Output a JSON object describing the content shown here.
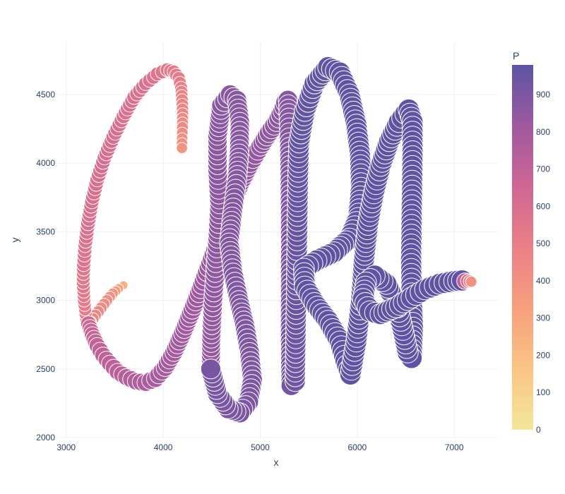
{
  "chart_data": {
    "type": "scatter",
    "title": "",
    "xlabel": "x",
    "ylabel": "y",
    "xlim": [
      2900,
      7450
    ],
    "ylim": [
      2000,
      4880
    ],
    "x_ticks": [
      3000,
      4000,
      5000,
      6000,
      7000
    ],
    "y_ticks": [
      2000,
      2500,
      3000,
      3500,
      4000,
      4500
    ],
    "x_tick_labels": [
      "3000",
      "4000",
      "5000",
      "6000",
      "7000"
    ],
    "y_tick_labels": [
      "2000",
      "2500",
      "3000",
      "3500",
      "4000",
      "4500"
    ],
    "grid": true,
    "marker_size_encodes": "P",
    "marker_color_encodes": "P",
    "colorbar": {
      "title": "P",
      "range": [
        0,
        980
      ],
      "ticks": [
        0,
        100,
        200,
        300,
        400,
        500,
        600,
        700,
        800,
        900
      ],
      "tick_labels": [
        "0",
        "100",
        "200",
        "300",
        "400",
        "500",
        "600",
        "700",
        "800",
        "900"
      ],
      "colorscale": [
        "#f3e79b",
        "#fac484",
        "#f8a07e",
        "#eb7f86",
        "#ce6693",
        "#a059a0",
        "#5c53a5"
      ]
    },
    "series": [
      {
        "points": [
          [
            3590,
            3110,
            260
          ],
          [
            3540,
            3085,
            330
          ],
          [
            3480,
            3050,
            380
          ],
          [
            3420,
            3000,
            420
          ],
          [
            3360,
            2945,
            440
          ],
          [
            3300,
            2890,
            455
          ],
          [
            3250,
            2840,
            470
          ],
          [
            3215,
            2820,
            480
          ],
          [
            3200,
            2900,
            500
          ],
          [
            3185,
            3000,
            520
          ],
          [
            3175,
            3130,
            540
          ],
          [
            3180,
            3260,
            560
          ],
          [
            3195,
            3400,
            575
          ],
          [
            3225,
            3560,
            585
          ],
          [
            3265,
            3720,
            590
          ],
          [
            3320,
            3880,
            595
          ],
          [
            3395,
            4040,
            600
          ],
          [
            3485,
            4190,
            595
          ],
          [
            3590,
            4340,
            590
          ],
          [
            3700,
            4480,
            585
          ],
          [
            3820,
            4580,
            575
          ],
          [
            3940,
            4650,
            560
          ],
          [
            4040,
            4680,
            545
          ],
          [
            4110,
            4665,
            530
          ],
          [
            4160,
            4620,
            510
          ],
          [
            4185,
            4550,
            490
          ],
          [
            4195,
            4460,
            470
          ],
          [
            4200,
            4360,
            450
          ],
          [
            4198,
            4260,
            430
          ],
          [
            4195,
            4180,
            410
          ],
          [
            4193,
            4110,
            390
          ]
        ]
      },
      {
        "points": [
          [
            3230,
            2830,
            650
          ],
          [
            3270,
            2750,
            670
          ],
          [
            3320,
            2670,
            690
          ],
          [
            3380,
            2600,
            700
          ],
          [
            3450,
            2540,
            710
          ],
          [
            3530,
            2480,
            720
          ],
          [
            3620,
            2440,
            735
          ],
          [
            3720,
            2410,
            750
          ],
          [
            3820,
            2400,
            765
          ],
          [
            3920,
            2430,
            780
          ],
          [
            4020,
            2510,
            790
          ],
          [
            4110,
            2620,
            800
          ],
          [
            4200,
            2760,
            810
          ],
          [
            4300,
            2930,
            815
          ],
          [
            4400,
            3110,
            820
          ],
          [
            4500,
            3300,
            825
          ],
          [
            4600,
            3500,
            830
          ],
          [
            4700,
            3690,
            835
          ],
          [
            4800,
            3860,
            840
          ],
          [
            4900,
            4000,
            845
          ],
          [
            5000,
            4120,
            850
          ],
          [
            5090,
            4220,
            855
          ],
          [
            5170,
            4300,
            860
          ],
          [
            5230,
            4380,
            865
          ],
          [
            5260,
            4440,
            870
          ],
          [
            5285,
            4460,
            875
          ],
          [
            5295,
            4330,
            880
          ],
          [
            5300,
            4150,
            885
          ],
          [
            5305,
            3950,
            890
          ],
          [
            5310,
            3700,
            895
          ],
          [
            5312,
            3450,
            900
          ],
          [
            5312,
            3200,
            905
          ],
          [
            5312,
            2950,
            910
          ],
          [
            5312,
            2700,
            915
          ],
          [
            5315,
            2500,
            920
          ],
          [
            5320,
            2380,
            925
          ]
        ]
      },
      {
        "points": [
          [
            4490,
            2500,
            840
          ],
          [
            4495,
            2720,
            845
          ],
          [
            4510,
            2950,
            850
          ],
          [
            4535,
            3200,
            855
          ],
          [
            4560,
            3450,
            860
          ],
          [
            4580,
            3700,
            860
          ],
          [
            4560,
            3950,
            865
          ],
          [
            4560,
            4200,
            865
          ],
          [
            4600,
            4420,
            870
          ],
          [
            4690,
            4500,
            870
          ],
          [
            4760,
            4460,
            875
          ],
          [
            4790,
            4300,
            875
          ],
          [
            4785,
            4100,
            880
          ],
          [
            4760,
            3880,
            880
          ],
          [
            4715,
            3640,
            885
          ],
          [
            4680,
            3420,
            885
          ],
          [
            4720,
            3200,
            890
          ],
          [
            4780,
            3000,
            890
          ],
          [
            4840,
            2820,
            895
          ],
          [
            4890,
            2620,
            895
          ],
          [
            4920,
            2420,
            900
          ],
          [
            4880,
            2260,
            900
          ],
          [
            4790,
            2180,
            905
          ],
          [
            4670,
            2210,
            905
          ],
          [
            4560,
            2320,
            910
          ],
          [
            4490,
            2500,
            910
          ]
        ]
      },
      {
        "points": [
          [
            5360,
            2410,
            930
          ],
          [
            5365,
            2650,
            935
          ],
          [
            5370,
            2900,
            940
          ],
          [
            5375,
            3150,
            945
          ],
          [
            5380,
            3400,
            950
          ],
          [
            5385,
            3650,
            955
          ],
          [
            5390,
            3900,
            955
          ],
          [
            5400,
            4150,
            960
          ],
          [
            5460,
            4380,
            960
          ],
          [
            5560,
            4580,
            965
          ],
          [
            5700,
            4700,
            965
          ],
          [
            5820,
            4660,
            970
          ],
          [
            5920,
            4500,
            970
          ],
          [
            5990,
            4280,
            970
          ],
          [
            6030,
            4050,
            975
          ],
          [
            6040,
            3820,
            975
          ],
          [
            6010,
            3600,
            975
          ],
          [
            5920,
            3450,
            975
          ],
          [
            5760,
            3350,
            975
          ],
          [
            5580,
            3290,
            975
          ],
          [
            5450,
            3230,
            975
          ],
          [
            5460,
            3100,
            975
          ],
          [
            5560,
            2980,
            975
          ],
          [
            5700,
            2850,
            975
          ],
          [
            5820,
            2700,
            975
          ],
          [
            5880,
            2560,
            975
          ],
          [
            5930,
            2460,
            975
          ],
          [
            5990,
            2700,
            975
          ],
          [
            6040,
            3000,
            975
          ],
          [
            6070,
            3300,
            975
          ],
          [
            6110,
            3550,
            975
          ],
          [
            6170,
            3780,
            975
          ],
          [
            6240,
            3980,
            975
          ],
          [
            6330,
            4160,
            975
          ],
          [
            6430,
            4300,
            975
          ],
          [
            6530,
            4390,
            975
          ],
          [
            6570,
            4300,
            975
          ],
          [
            6570,
            4050,
            975
          ],
          [
            6565,
            3800,
            975
          ],
          [
            6560,
            3550,
            975
          ],
          [
            6555,
            3300,
            975
          ],
          [
            6560,
            3050,
            975
          ],
          [
            6575,
            2800,
            975
          ],
          [
            6560,
            2580,
            975
          ],
          [
            6520,
            2620,
            975
          ],
          [
            6420,
            2950,
            975
          ],
          [
            6300,
            3120,
            975
          ],
          [
            6180,
            3180,
            975
          ],
          [
            6090,
            3130,
            975
          ],
          [
            6060,
            3010,
            975
          ],
          [
            6130,
            2920,
            975
          ],
          [
            6240,
            2900,
            975
          ],
          [
            6400,
            2950,
            975
          ],
          [
            6560,
            3020,
            975
          ],
          [
            6700,
            3080,
            975
          ],
          [
            6850,
            3120,
            975
          ],
          [
            7000,
            3140,
            975
          ],
          [
            7080,
            3145,
            975
          ]
        ]
      },
      {
        "points": [
          [
            7110,
            3140,
            700
          ],
          [
            7140,
            3140,
            600
          ],
          [
            7160,
            3138,
            500
          ],
          [
            7175,
            3136,
            400
          ]
        ]
      }
    ]
  }
}
